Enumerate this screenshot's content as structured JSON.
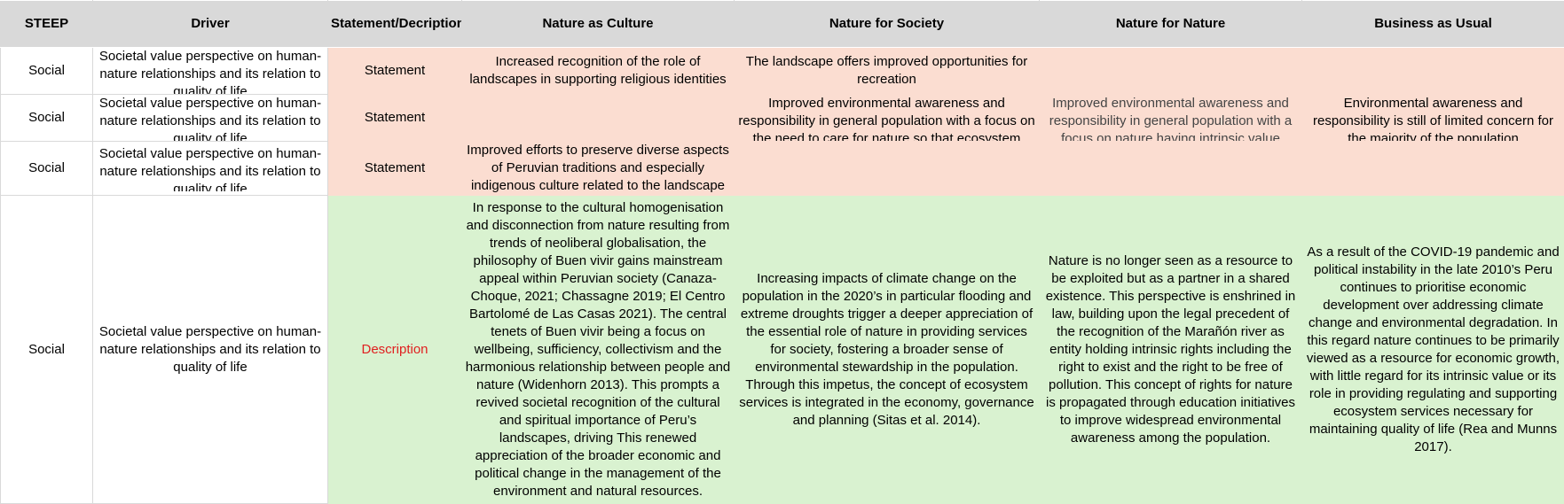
{
  "headers": [
    "STEEP",
    "Driver",
    "Statement/Decription",
    "Nature as Culture",
    "Nature for Society",
    "Nature for Nature",
    "Business as Usual"
  ],
  "rows": [
    {
      "steep": "Social",
      "driver": "Societal value perspective on human-nature relationships and its relation to quality of life",
      "type": "Statement",
      "culture": "Increased recognition of the role of landscapes in supporting religious identities",
      "society": "The landscape offers improved opportunities for recreation",
      "nature": "",
      "business": ""
    },
    {
      "steep": "Social",
      "driver": "Societal value perspective on human-nature relationships and its relation to quality of life",
      "type": "Statement",
      "culture": "",
      "society": "Improved environmental awareness and responsibility in general population with a focus on the need to care for nature so that ecosystem",
      "nature": "Improved environmental awareness and responsibility in general population with a focus on nature having intrinsic value",
      "business": "Environmental awareness and responsibility is still of limited concern for the majority of the population"
    },
    {
      "steep": "Social",
      "driver": "Societal value perspective on human-nature relationships and its relation to quality of life",
      "type": "Statement",
      "culture": "Improved efforts to preserve diverse aspects of Peruvian traditions and especially indigenous culture related to the landscape",
      "society": "",
      "nature": "",
      "business": ""
    },
    {
      "steep": "Social",
      "driver": "Societal value perspective on human-nature relationships and its relation to quality of life",
      "type": "Description",
      "culture": "In response to the cultural homogenisation and disconnection from nature resulting from trends of neoliberal globalisation, the philosophy of Buen vivir gains mainstream appeal within Peruvian society (Canaza-Choque, 2021; Chassagne 2019; El Centro Bartolomé de Las Casas 2021). The central tenets of Buen vivir being a focus on wellbeing, sufficiency, collectivism and the harmonious relationship between people and nature (Widenhorn 2013). This prompts a revived societal recognition of the cultural and spiritual importance of Peru’s landscapes, driving This renewed appreciation of the broader economic and political change in the management of the environment and natural resources.",
      "society": "Increasing impacts of climate change on the population in the 2020’s in particular flooding and extreme droughts trigger a deeper appreciation of the essential role of nature in providing services for society, fostering a broader sense of environmental stewardship in the population. Through this impetus, the concept of ecosystem services is integrated in the economy, governance and planning (Sitas et al. 2014).",
      "nature": "Nature is no longer seen as a resource to be exploited but as a partner in a shared existence. This perspective is enshrined in law, building upon the legal precedent of the recognition of the Marañón river as entity holding intrinsic rights including the right to exist and the right to be free of pollution. This concept of rights for nature is propagated through education initiatives to improve widespread environmental awareness among the population.",
      "business": "As a result of the COVID-19 pandemic and political instability in the late 2010’s Peru continues to prioritise economic development over addressing climate change and environmental degradation. In this regard nature continues to be primarily viewed as a resource for economic growth, with little regard for its intrinsic value or its role in providing regulating and supporting ecosystem services necessary for maintaining quality of life (Rea and Munns 2017)."
    }
  ]
}
